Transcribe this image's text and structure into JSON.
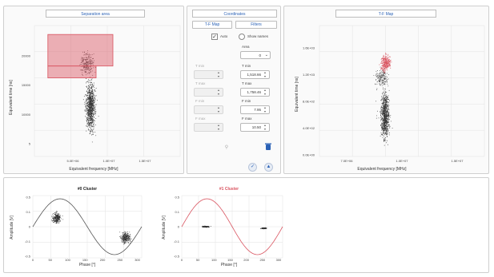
{
  "separation_panel": {
    "title": "Separation area",
    "chart_data": {
      "type": "scatter",
      "xlabel": "Equivalent frequency [MHz]",
      "ylabel": "Equivalent time [ns]",
      "xticks": [
        "5.0E+06",
        "1.0E+07",
        "1.5E+07"
      ],
      "yticks": [
        "20000",
        "15000",
        "10000",
        "5"
      ],
      "grid": true,
      "selection_rects": [
        {
          "x0": 5.2,
          "x1": 11.0,
          "y0": 15200,
          "y1": 20500,
          "color": "#d9535f"
        },
        {
          "x0": 5.2,
          "x1": 9.5,
          "y0": 13200,
          "y1": 15200,
          "color": "#d9535f"
        }
      ]
    }
  },
  "coordinates_panel": {
    "title": "Coordinates",
    "tab_tf_map": "T-F Map",
    "tab_filters": "Filters",
    "auto_label": "Auto",
    "show_names_label": "Show names",
    "area_label": "Area",
    "area_value": "0",
    "left_labels": [
      "T min",
      "T max",
      "F min",
      "F max"
    ],
    "right_labels": [
      "T min",
      "T max",
      "F min",
      "F max"
    ],
    "right_values": [
      "1,518.66",
      "1,758.46",
      "7.95",
      "10.50"
    ]
  },
  "tf_map_panel": {
    "title": "T-F Map",
    "chart_data": {
      "type": "scatter",
      "xlabel": "Equivalent frequency [MHz]",
      "ylabel": "Equivalent time [ns]",
      "xticks": [
        "7.0E+06",
        "1.0E+07",
        "1.5E+07"
      ],
      "yticks": [
        "1.6E+03",
        "1.2E+03",
        "8.0E+02",
        "4.0E+02",
        "0.0E+00"
      ],
      "grid": true
    }
  },
  "cluster0_chart": {
    "title": "#0 Cluster",
    "title_color": "#222222",
    "chart_data": {
      "type": "scatter",
      "xlabel": "Phase [°]",
      "ylabel": "Amplitude [V]",
      "xticks": [
        "0",
        "50",
        "100",
        "150",
        "200",
        "250",
        "300"
      ],
      "yticks": [
        "0.5",
        "0.1",
        "0",
        "-0.1",
        "-0.5"
      ],
      "xlim": [
        0,
        360
      ],
      "curve_color": "#555555"
    }
  },
  "cluster1_chart": {
    "title": "#1 Cluster",
    "title_color": "#d9535f",
    "chart_data": {
      "type": "scatter",
      "xlabel": "Phase [°]",
      "ylabel": "Amplitude [V]",
      "xticks": [
        "0",
        "50",
        "100",
        "150",
        "200",
        "250",
        "300"
      ],
      "yticks": [
        "0.5",
        "0.1",
        "0",
        "-0.1",
        "-0.5"
      ],
      "xlim": [
        0,
        360
      ],
      "curve_color": "#d9535f"
    }
  }
}
